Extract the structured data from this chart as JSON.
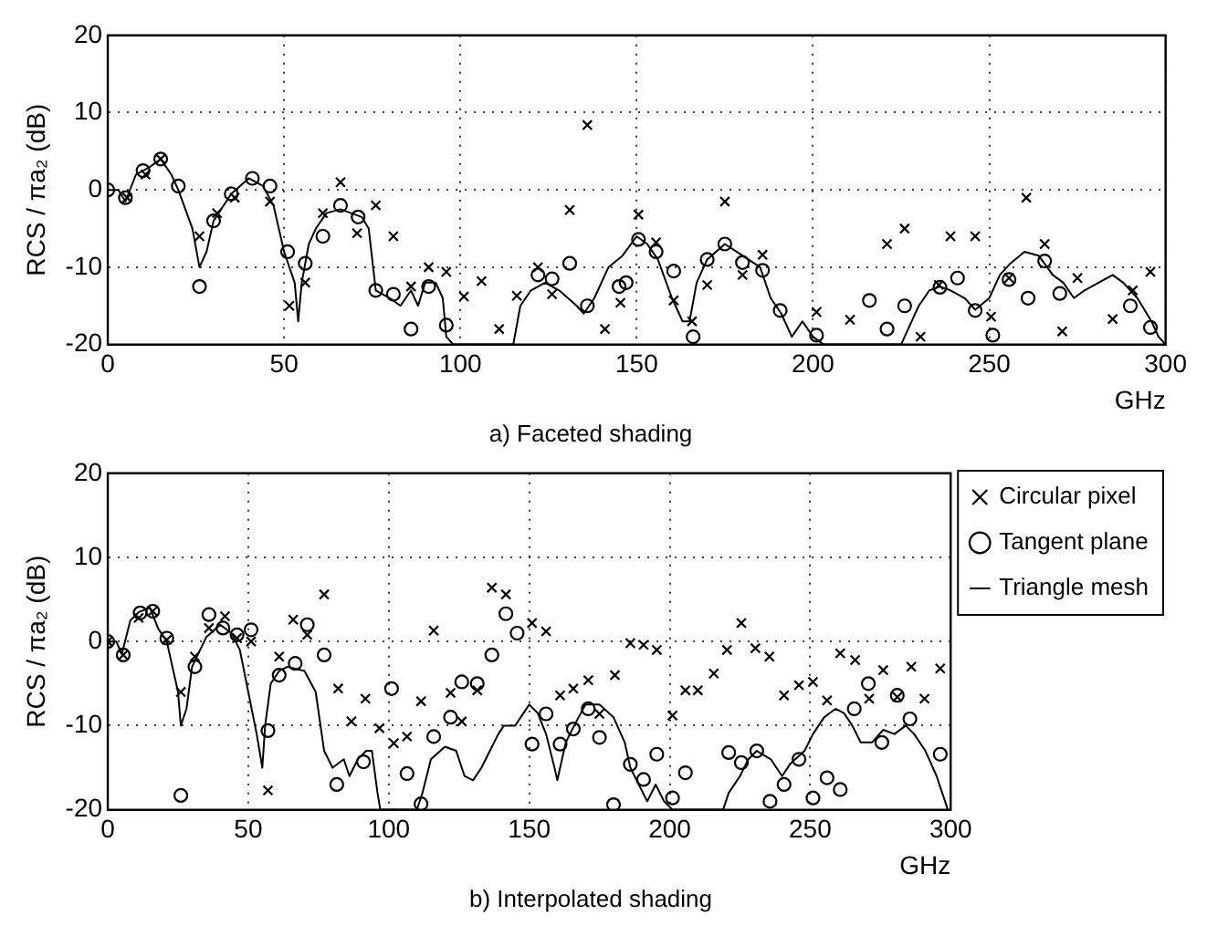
{
  "chart_data": [
    {
      "type": "scatter",
      "title": "a) Faceted shading",
      "xlabel": "GHz",
      "ylabel": "RCS / πa₂ (dB)",
      "xlim": [
        0,
        300
      ],
      "xticks": [
        0,
        50,
        100,
        150,
        200,
        250,
        300
      ],
      "ylim": [
        -20,
        20
      ],
      "yticks": [
        -20,
        -10,
        0,
        10,
        20
      ],
      "grid": true,
      "legend": false,
      "series": [
        {
          "type": "scatter",
          "marker": "cross",
          "color": "#000000",
          "x": [
            5.5,
            10.7,
            15,
            26,
            31,
            36,
            46,
            51.5,
            56,
            61,
            66,
            70.7,
            76,
            81,
            86,
            91,
            96,
            101,
            106,
            111,
            116,
            122,
            126,
            131,
            136,
            141,
            145.4,
            150.5,
            155.5,
            160.5,
            165.7,
            170,
            175,
            180,
            185.7,
            201,
            210.5,
            221,
            226,
            230.5,
            235.7,
            239,
            246,
            250.5,
            255.6,
            260.5,
            265.7,
            270.7,
            275,
            285,
            290.7,
            295.7
          ],
          "values": [
            -1,
            2,
            4,
            -6,
            -3,
            -1,
            -1.5,
            -15,
            -12,
            -3,
            1,
            -5.6,
            -2,
            -6,
            -12.5,
            -10,
            -10.6,
            -13.8,
            -11.8,
            -18,
            -13.7,
            -10,
            -13.5,
            -2.6,
            8.4,
            -18,
            -14.6,
            -3.2,
            -6.8,
            -14.3,
            -17,
            -12.3,
            -1.5,
            -11,
            -8.4,
            -15.8,
            -16.8,
            -7,
            -5,
            -19,
            -12.3,
            -6,
            -6,
            -16.4,
            -11.4,
            -1,
            -7,
            -18.3,
            -11.4,
            -16.7,
            -13,
            -10.6
          ]
        },
        {
          "type": "scatter",
          "marker": "circle",
          "color": "#000000",
          "x": [
            0,
            5,
            10,
            15,
            20,
            26,
            30,
            35,
            41,
            46,
            51,
            56,
            61,
            66,
            71,
            76,
            81,
            86,
            91,
            96,
            122,
            126,
            131,
            136,
            145,
            147,
            150.5,
            155.5,
            160.5,
            166,
            170,
            175,
            180,
            185.7,
            190.7,
            201,
            216,
            221,
            226,
            236,
            241,
            246,
            251,
            255.6,
            261,
            265.7,
            270,
            290,
            295.7
          ],
          "values": [
            0,
            -1,
            2.5,
            4,
            0.5,
            -12.5,
            -4,
            -0.5,
            1.5,
            0.5,
            -8,
            -9.5,
            -6,
            -2,
            -3.5,
            -13,
            -13.5,
            -18,
            -12.5,
            -17.5,
            -11,
            -11.5,
            -9.5,
            -15,
            -12.5,
            -12,
            -6.4,
            -8,
            -10.5,
            -19,
            -9,
            -7,
            -9.4,
            -10.4,
            -15.6,
            -18.8,
            -14.3,
            -18,
            -15,
            -12.6,
            -11.4,
            -15.6,
            -18.8,
            -11.6,
            -14,
            -9.2,
            -13.4,
            -15,
            -17.8
          ]
        },
        {
          "type": "line",
          "marker": "none",
          "color": "#000000",
          "x": [
            0,
            3,
            5,
            8,
            12,
            15,
            18,
            20,
            24,
            26,
            28,
            30,
            35,
            40,
            44,
            47,
            50,
            53,
            54,
            55,
            57,
            59,
            62,
            66,
            72,
            74,
            76,
            80,
            83,
            86,
            88,
            90,
            93,
            95,
            96,
            98,
            115,
            117,
            120,
            124,
            128,
            133,
            135,
            138,
            142,
            146,
            150,
            153,
            156,
            160,
            163,
            165,
            167,
            170,
            175,
            180,
            185,
            188,
            191,
            194,
            197,
            200,
            203,
            225,
            228,
            230,
            233,
            236,
            239,
            243,
            246,
            250,
            253,
            256,
            260,
            264,
            268,
            271,
            274,
            277,
            281,
            285,
            288,
            292,
            296,
            298,
            300
          ],
          "values": [
            0,
            0,
            -1.5,
            2,
            3,
            4,
            2,
            0,
            -5,
            -10,
            -8,
            -4,
            -0.5,
            1.5,
            0.5,
            -2,
            -8,
            -12,
            -17,
            -12,
            -7,
            -5,
            -3,
            -2.5,
            -3.5,
            -5,
            -13,
            -14,
            -15,
            -13,
            -15,
            -12,
            -12,
            -14,
            -19,
            -20,
            -20,
            -15,
            -13,
            -12,
            -13,
            -15,
            -16,
            -14,
            -10,
            -8.5,
            -6,
            -7,
            -9,
            -14,
            -17,
            -17,
            -12,
            -9,
            -7,
            -8.5,
            -10,
            -14,
            -16,
            -19,
            -17,
            -19,
            -20,
            -20,
            -17,
            -15,
            -13,
            -12.5,
            -13,
            -14,
            -15.5,
            -14,
            -11,
            -9.5,
            -8,
            -8.5,
            -11,
            -12,
            -14,
            -13,
            -12,
            -11,
            -12,
            -14,
            -17,
            -19,
            -20
          ]
        }
      ]
    },
    {
      "type": "scatter",
      "title": "b) Interpolated shading",
      "xlabel": "GHz",
      "ylabel": "RCS / πa₂ (dB)",
      "xlim": [
        0,
        300
      ],
      "xticks": [
        0,
        50,
        100,
        150,
        200,
        250,
        300
      ],
      "ylim": [
        -20,
        20
      ],
      "yticks": [
        -20,
        -10,
        0,
        10,
        20
      ],
      "grid": true,
      "legend": "top right",
      "series": [
        {
          "name": "Circular pixel",
          "type": "scatter",
          "marker": "cross",
          "color": "#000000",
          "x": [
            0,
            5.5,
            11,
            16,
            21,
            26,
            31,
            36,
            41.7,
            46,
            51,
            57,
            61,
            66,
            71,
            77,
            82,
            86.7,
            91.7,
            96.7,
            101.8,
            106.5,
            111.5,
            116,
            122,
            126,
            131.5,
            136.7,
            141.7,
            151,
            156,
            161,
            165.7,
            171,
            175,
            180.5,
            186,
            190.7,
            195.4,
            201,
            205.6,
            210,
            215.7,
            220.4,
            225.5,
            230.5,
            235.5,
            240.7,
            246,
            251,
            256,
            260.7,
            266,
            271,
            276,
            281,
            286,
            290.7,
            296.3
          ],
          "values": [
            0,
            -1.6,
            2.8,
            3.6,
            0.2,
            -6,
            -1.8,
            1.6,
            3,
            0.4,
            0,
            -17.7,
            -1.8,
            2.6,
            0.8,
            5.6,
            -5.6,
            -9.5,
            -6.8,
            -10.3,
            -12.1,
            -11.3,
            -7.1,
            1.3,
            -6.1,
            -9.5,
            -5.8,
            6.4,
            5.6,
            2.2,
            1.2,
            -6.4,
            -5.6,
            -4.6,
            -8.6,
            -4,
            -0.2,
            -0.4,
            -1,
            -8.8,
            -5.8,
            -5.8,
            -3.8,
            -1,
            2.2,
            -0.8,
            -1.8,
            -6.4,
            -5.2,
            -4.8,
            -7,
            -1.4,
            -2.2,
            -6.8,
            -3.4,
            -6.6,
            -3,
            -6.8,
            -3.2
          ]
        },
        {
          "name": "Tangent plane",
          "type": "scatter",
          "marker": "circle",
          "color": "#000000",
          "x": [
            0,
            5.5,
            11.5,
            16,
            21,
            26,
            31,
            36,
            41,
            46,
            51,
            57,
            61,
            66.7,
            71,
            77,
            81.5,
            91,
            101,
            106.5,
            111.5,
            116,
            122,
            126,
            131.5,
            136.7,
            141.7,
            145.7,
            151,
            156,
            161,
            165.7,
            171,
            175,
            180,
            186,
            190.7,
            195.4,
            201,
            205.6,
            221,
            225.5,
            231,
            235.7,
            240.7,
            246,
            251,
            256,
            260.7,
            265.7,
            270.7,
            275.5,
            281,
            285.5,
            296.3
          ],
          "values": [
            0,
            -1.6,
            3.4,
            3.6,
            0.4,
            -18.3,
            -3,
            3.2,
            1.6,
            0.8,
            1.4,
            -10.6,
            -4,
            -2.6,
            2,
            -1.6,
            -17,
            -14.3,
            -5.6,
            -15.7,
            -19.3,
            -11.3,
            -9,
            -4.8,
            -5,
            -1.6,
            3.3,
            1,
            -12.2,
            -8.6,
            -12.2,
            -10.4,
            -8,
            -11.4,
            -19.4,
            -14.6,
            -16.4,
            -13.4,
            -18.6,
            -15.6,
            -13.2,
            -14.4,
            -13,
            -19,
            -17,
            -14,
            -18.6,
            -16.2,
            -17.6,
            -8,
            -5,
            -12,
            -6.4,
            -9.2,
            -13.4
          ]
        },
        {
          "name": "Triangle mesh",
          "type": "line",
          "marker": "none",
          "color": "#000000",
          "x": [
            0,
            3,
            5,
            8,
            11,
            15,
            18,
            21,
            25,
            26,
            28,
            30,
            35,
            40,
            44,
            47,
            50,
            53,
            55,
            56,
            58,
            61,
            64,
            70,
            74,
            77,
            80,
            84,
            86,
            89,
            92,
            94,
            96,
            97,
            110,
            112,
            115,
            120,
            124,
            127,
            130,
            133,
            136,
            139,
            141,
            145,
            147,
            150,
            153,
            156,
            159,
            160,
            163,
            166,
            170,
            175,
            180,
            184,
            186,
            189,
            192,
            195,
            198,
            201,
            219,
            221,
            225,
            228,
            231,
            236,
            240,
            243,
            248,
            251,
            255,
            259,
            262,
            265,
            268,
            272,
            276,
            280,
            284,
            287,
            291,
            295,
            298,
            299
          ],
          "values": [
            0,
            0,
            -1.5,
            2.5,
            3.5,
            4,
            1.5,
            0,
            -6,
            -10,
            -8,
            -3,
            0.5,
            2,
            1,
            -1,
            -6,
            -11,
            -15,
            -10,
            -5,
            -3.5,
            -3,
            -3.5,
            -6,
            -13,
            -15,
            -14,
            -16,
            -14,
            -13,
            -13,
            -18,
            -20,
            -20,
            -18,
            -14,
            -12.5,
            -13,
            -16,
            -16.5,
            -15,
            -13,
            -11,
            -10,
            -10,
            -9,
            -7.5,
            -8.5,
            -11,
            -15,
            -16.5,
            -12,
            -10,
            -7.5,
            -7.5,
            -9,
            -12,
            -15,
            -17,
            -19,
            -17,
            -19,
            -20,
            -20,
            -18,
            -16,
            -14,
            -13,
            -14,
            -16,
            -14.5,
            -13,
            -11,
            -9,
            -8,
            -8.5,
            -10,
            -12,
            -12,
            -10.5,
            -11,
            -10,
            -11,
            -13,
            -16,
            -19,
            -20
          ]
        }
      ]
    }
  ]
}
